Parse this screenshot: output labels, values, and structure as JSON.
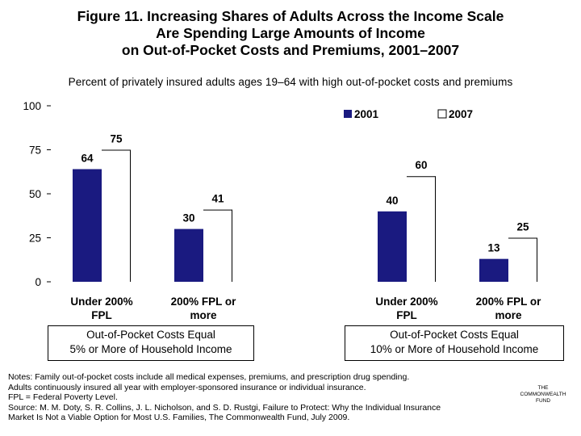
{
  "title_lines": [
    "Figure 11. Increasing Shares of Adults Across the Income Scale",
    "Are Spending Large Amounts of Income",
    "on Out-of-Pocket Costs and Premiums, 2001–2007"
  ],
  "subtitle": "Percent of privately insured adults ages 19–64 with high out-of-pocket costs and premiums",
  "chart_data": {
    "type": "bar",
    "categories": [
      [
        "Under 200%",
        "FPL"
      ],
      [
        "200% FPL or",
        "more"
      ],
      [
        "Under 200%",
        "FPL"
      ],
      [
        "200% FPL or",
        "more"
      ]
    ],
    "series": [
      {
        "name": "2001",
        "values": [
          64,
          30,
          40,
          13
        ],
        "color": "#1a1a80"
      },
      {
        "name": "2007",
        "values": [
          75,
          41,
          60,
          25
        ],
        "color": "#ffffff"
      }
    ],
    "ylim": [
      0,
      100
    ],
    "yticks": [
      0,
      25,
      50,
      75,
      100
    ],
    "legend_position": "top-right",
    "grid": false,
    "groups": [
      {
        "label_lines": [
          "Out-of-Pocket Costs Equal",
          "5% or More of Household Income"
        ],
        "categories": [
          0,
          1
        ]
      },
      {
        "label_lines": [
          "Out-of-Pocket Costs Equal",
          "10% or More of Household Income"
        ],
        "categories": [
          2,
          3
        ]
      }
    ]
  },
  "notes": [
    "Notes: Family out-of-pocket costs include all medical expenses, premiums, and prescription drug spending.",
    "Adults continuously insured all year with employer-sponsored insurance or individual insurance.",
    "FPL = Federal Poverty Level.",
    "Source: M. M. Doty, S. R. Collins, J. L. Nicholson, and S. D. Rustgi, Failure to Protect: Why the Individual Insurance",
    "Market Is Not a Viable Option for Most U.S. Families, The Commonwealth Fund, July 2009."
  ],
  "logo_lines": [
    "THE",
    "COMMONWEALTH",
    "FUND"
  ]
}
